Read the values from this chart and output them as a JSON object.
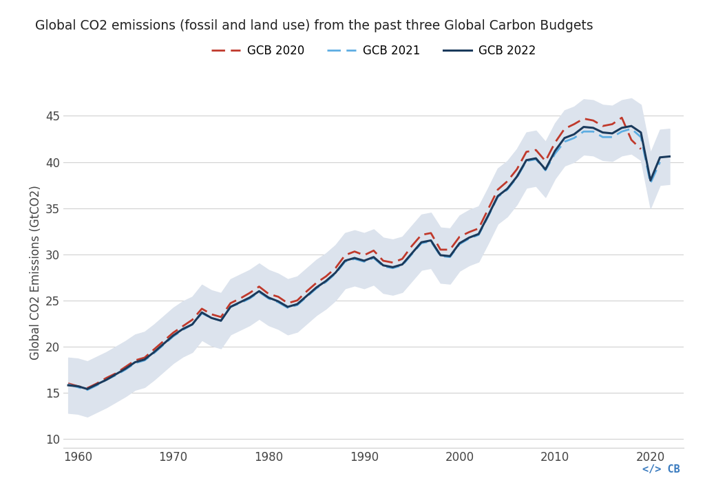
{
  "title": "Global CO2 emissions (fossil and land use) from the past three Global Carbon Budgets",
  "ylabel": "Global CO2 Emissions (GtCO2)",
  "background_color": "#ffffff",
  "years_all": [
    1959,
    1960,
    1961,
    1962,
    1963,
    1964,
    1965,
    1966,
    1967,
    1968,
    1969,
    1970,
    1971,
    1972,
    1973,
    1974,
    1975,
    1976,
    1977,
    1978,
    1979,
    1980,
    1981,
    1982,
    1983,
    1984,
    1985,
    1986,
    1987,
    1988,
    1989,
    1990,
    1991,
    1992,
    1993,
    1994,
    1995,
    1996,
    1997,
    1998,
    1999,
    2000,
    2001,
    2002,
    2003,
    2004,
    2005,
    2006,
    2007,
    2008,
    2009,
    2010,
    2011,
    2012,
    2013,
    2014,
    2015,
    2016,
    2017,
    2018,
    2019,
    2020,
    2021,
    2022
  ],
  "gcb2022_values": [
    15.8,
    15.7,
    15.4,
    15.9,
    16.4,
    17.0,
    17.6,
    18.3,
    18.6,
    19.4,
    20.3,
    21.2,
    21.9,
    22.4,
    23.7,
    23.1,
    22.8,
    24.3,
    24.8,
    25.3,
    26.0,
    25.3,
    24.9,
    24.3,
    24.6,
    25.5,
    26.4,
    27.1,
    28.0,
    29.3,
    29.6,
    29.3,
    29.7,
    28.8,
    28.6,
    28.9,
    30.1,
    31.3,
    31.5,
    29.9,
    29.8,
    31.2,
    31.8,
    32.2,
    34.2,
    36.3,
    37.1,
    38.4,
    40.2,
    40.4,
    39.2,
    41.2,
    42.6,
    43.0,
    43.8,
    43.7,
    43.2,
    43.1,
    43.7,
    43.9,
    43.2,
    38.0,
    40.5,
    40.6
  ],
  "gcb2021_values": [
    15.9,
    15.6,
    15.3,
    15.8,
    16.4,
    16.9,
    17.5,
    18.2,
    18.5,
    19.3,
    20.2,
    21.1,
    21.8,
    22.4,
    23.6,
    23.1,
    22.8,
    24.3,
    24.7,
    25.2,
    25.9,
    25.2,
    24.8,
    24.2,
    24.5,
    25.4,
    26.3,
    27.0,
    27.9,
    29.2,
    29.5,
    29.2,
    29.6,
    28.7,
    28.5,
    28.8,
    30.0,
    31.2,
    31.4,
    29.8,
    29.7,
    31.1,
    31.7,
    32.1,
    34.1,
    36.2,
    37.0,
    38.3,
    40.1,
    40.3,
    39.1,
    40.9,
    42.2,
    42.6,
    43.3,
    43.3,
    42.7,
    42.7,
    43.3,
    43.6,
    42.7,
    37.7,
    40.0,
    null
  ],
  "gcb2020_values": [
    16.0,
    15.7,
    15.5,
    16.0,
    16.6,
    17.1,
    17.8,
    18.5,
    18.8,
    19.7,
    20.6,
    21.5,
    22.2,
    22.9,
    24.1,
    23.5,
    23.2,
    24.7,
    25.2,
    25.8,
    26.5,
    25.7,
    25.4,
    24.7,
    25.0,
    26.0,
    26.9,
    27.6,
    28.5,
    29.9,
    30.3,
    29.9,
    30.4,
    29.3,
    29.1,
    29.5,
    30.9,
    32.1,
    32.3,
    30.5,
    30.5,
    31.9,
    32.4,
    32.8,
    34.9,
    37.0,
    37.9,
    39.2,
    41.1,
    41.3,
    40.1,
    42.1,
    43.6,
    44.1,
    44.7,
    44.5,
    43.9,
    44.1,
    44.8,
    42.4,
    41.4,
    null,
    null,
    null
  ],
  "gcb2022_upper": [
    18.8,
    18.7,
    18.4,
    18.9,
    19.4,
    20.0,
    20.6,
    21.3,
    21.6,
    22.4,
    23.3,
    24.2,
    24.9,
    25.4,
    26.7,
    26.1,
    25.8,
    27.3,
    27.8,
    28.3,
    29.0,
    28.3,
    27.9,
    27.3,
    27.6,
    28.5,
    29.4,
    30.1,
    31.0,
    32.3,
    32.6,
    32.3,
    32.7,
    31.8,
    31.6,
    31.9,
    33.1,
    34.3,
    34.5,
    32.9,
    32.8,
    34.2,
    34.8,
    35.2,
    37.2,
    39.3,
    40.1,
    41.4,
    43.2,
    43.4,
    42.2,
    44.2,
    45.6,
    46.0,
    46.8,
    46.7,
    46.2,
    46.1,
    46.7,
    46.9,
    46.2,
    41.0,
    43.5,
    43.6
  ],
  "gcb2022_lower": [
    12.8,
    12.7,
    12.4,
    12.9,
    13.4,
    14.0,
    14.6,
    15.3,
    15.6,
    16.4,
    17.3,
    18.2,
    18.9,
    19.4,
    20.7,
    20.1,
    19.8,
    21.3,
    21.8,
    22.3,
    23.0,
    22.3,
    21.9,
    21.3,
    21.6,
    22.5,
    23.4,
    24.1,
    25.0,
    26.3,
    26.6,
    26.3,
    26.7,
    25.8,
    25.6,
    25.9,
    27.1,
    28.3,
    28.5,
    26.9,
    26.8,
    28.2,
    28.8,
    29.2,
    31.2,
    33.3,
    34.1,
    35.4,
    37.2,
    37.4,
    36.2,
    38.2,
    39.6,
    40.0,
    40.8,
    40.7,
    40.2,
    40.1,
    40.7,
    40.9,
    40.2,
    35.0,
    37.5,
    37.6
  ],
  "gcb2020_color": "#c0392b",
  "gcb2021_color": "#5dade2",
  "gcb2022_color": "#1a3a5c",
  "shade_color": "#dce3ed",
  "ylim": [
    9,
    47
  ],
  "yticks": [
    10,
    15,
    20,
    25,
    30,
    35,
    40,
    45
  ],
  "xticks": [
    1960,
    1970,
    1980,
    1990,
    2000,
    2010,
    2020
  ],
  "xlim": [
    1958.5,
    2023.5
  ],
  "title_fontsize": 13.5,
  "tick_labelsize": 12,
  "axis_label_fontsize": 12,
  "legend_fontsize": 12
}
